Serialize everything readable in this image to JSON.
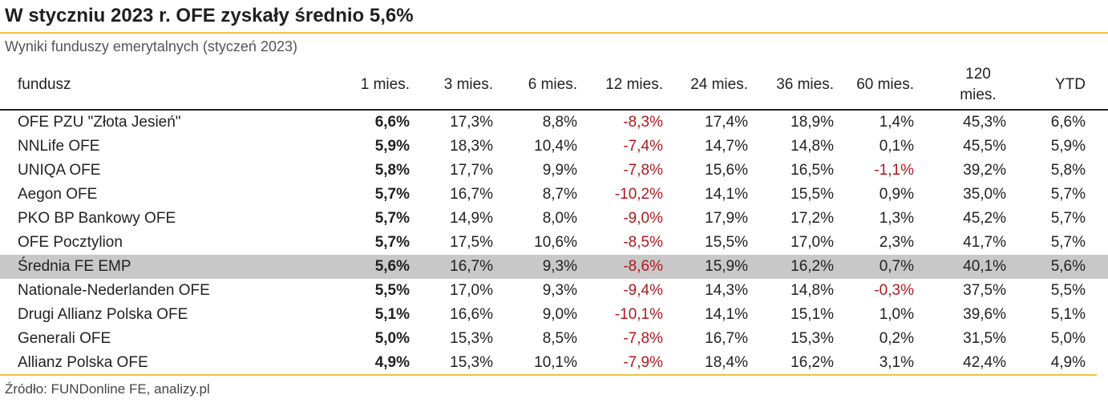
{
  "title": "W styczniu 2023 r. OFE zyskały średnio 5,6%",
  "subtitle": "Wyniki funduszy emerytalnych (styczeń 2023)",
  "source": "Źródło: FUNDonline FE, analizy.pl",
  "colors": {
    "accent_rule": "#f0c040",
    "negative": "#b2181c",
    "highlight_row": "#c8c8c8"
  },
  "table": {
    "headers": [
      "fundusz",
      "1 mies.",
      "3 mies.",
      "6 mies.",
      "12 mies.",
      "24 mies.",
      "36 mies.",
      "60 mies.",
      "120 mies.",
      "YTD"
    ],
    "highlight_row": "Średnia FE EMP",
    "rows": [
      [
        "OFE PZU \"Złota Jesień\"",
        "6,6%",
        "17,3%",
        "8,8%",
        "-8,3%",
        "17,4%",
        "18,9%",
        "1,4%",
        "45,3%",
        "6,6%"
      ],
      [
        "NNLife OFE",
        "5,9%",
        "18,3%",
        "10,4%",
        "-7,4%",
        "14,7%",
        "14,8%",
        "0,1%",
        "45,5%",
        "5,9%"
      ],
      [
        "UNIQA OFE",
        "5,8%",
        "17,7%",
        "9,9%",
        "-7,8%",
        "15,6%",
        "16,5%",
        "-1,1%",
        "39,2%",
        "5,8%"
      ],
      [
        "Aegon OFE",
        "5,7%",
        "16,7%",
        "8,7%",
        "-10,2%",
        "14,1%",
        "15,5%",
        "0,9%",
        "35,0%",
        "5,7%"
      ],
      [
        "PKO BP Bankowy OFE",
        "5,7%",
        "14,9%",
        "8,0%",
        "-9,0%",
        "17,9%",
        "17,2%",
        "1,3%",
        "45,2%",
        "5,7%"
      ],
      [
        "OFE Pocztylion",
        "5,7%",
        "17,5%",
        "10,6%",
        "-8,5%",
        "15,5%",
        "17,0%",
        "2,3%",
        "41,7%",
        "5,7%"
      ],
      [
        "Średnia FE EMP",
        "5,6%",
        "16,7%",
        "9,3%",
        "-8,6%",
        "15,9%",
        "16,2%",
        "0,7%",
        "40,1%",
        "5,6%"
      ],
      [
        "Nationale-Nederlanden OFE",
        "5,5%",
        "17,0%",
        "9,3%",
        "-9,4%",
        "14,3%",
        "14,8%",
        "-0,3%",
        "37,5%",
        "5,5%"
      ],
      [
        "Drugi Allianz Polska OFE",
        "5,1%",
        "16,6%",
        "9,0%",
        "-10,1%",
        "14,1%",
        "15,1%",
        "1,0%",
        "39,6%",
        "5,1%"
      ],
      [
        "Generali OFE",
        "5,0%",
        "15,3%",
        "8,5%",
        "-7,8%",
        "16,7%",
        "15,3%",
        "0,2%",
        "31,5%",
        "5,0%"
      ],
      [
        "Allianz Polska OFE",
        "4,9%",
        "15,3%",
        "10,1%",
        "-7,9%",
        "18,4%",
        "16,2%",
        "3,1%",
        "42,4%",
        "4,9%"
      ]
    ]
  }
}
